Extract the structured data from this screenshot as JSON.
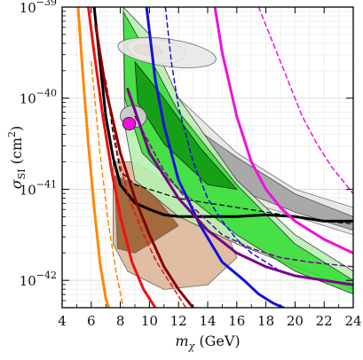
{
  "chart_data": {
    "type": "area",
    "xlabel": "m_χ (GeV)",
    "xlabel_parts": {
      "sym": "m",
      "sub": "χ",
      "unit": " (GeV)"
    },
    "ylabel": "σ_SI (cm²)",
    "ylabel_parts": {
      "sym": "σ",
      "sub": "SI",
      "unit": " (cm",
      "sup": "2",
      "close": ")"
    },
    "xlim": [
      4,
      24
    ],
    "ylim_log10": [
      -42.3,
      -39
    ],
    "y_scale": "log",
    "grid": true,
    "x_ticks": [
      4,
      6,
      8,
      10,
      12,
      14,
      16,
      18,
      20,
      22,
      24
    ],
    "x_tick_labels": [
      "4",
      "6",
      "8",
      "10",
      "12",
      "14",
      "16",
      "18",
      "20",
      "22",
      "24"
    ],
    "y_ticks": [
      {
        "exp": -42,
        "label_base": "10",
        "label_exp": "−42"
      },
      {
        "exp": -41,
        "label_base": "10",
        "label_exp": "−41"
      },
      {
        "exp": -40,
        "label_base": "10",
        "label_exp": "−40"
      },
      {
        "exp": -39,
        "label_base": "10",
        "label_exp": "−39"
      }
    ],
    "regions": [
      {
        "id": "tan-region",
        "fill": "#d9b394",
        "stroke": "#666666",
        "opacity": 0.85,
        "outer": [
          [
            7.5,
            -40.7
          ],
          [
            9,
            -40.7
          ],
          [
            12,
            -41
          ],
          [
            15,
            -41.35
          ],
          [
            16,
            -41.75
          ],
          [
            14,
            -42.05
          ],
          [
            11,
            -42.1
          ],
          [
            8.5,
            -41.9
          ],
          [
            7.5,
            -41.6
          ]
        ],
        "inner": [
          [
            7.6,
            -40.85
          ],
          [
            10,
            -41.0
          ],
          [
            12,
            -41.4
          ],
          [
            9,
            -41.7
          ],
          [
            7.8,
            -41.65
          ]
        ],
        "inner_fill": "#9a5a2a"
      },
      {
        "id": "light-gray-band",
        "fill": "#e6e6e6",
        "stroke": "#777777",
        "opacity": 0.9,
        "outer": [
          [
            9.5,
            -39.4
          ],
          [
            12,
            -40.0
          ],
          [
            16,
            -40.6
          ],
          [
            20,
            -41.0
          ],
          [
            24,
            -41.2
          ],
          [
            24,
            -41.5
          ],
          [
            20,
            -41.3
          ],
          [
            16,
            -41.1
          ],
          [
            12,
            -40.9
          ],
          [
            9.6,
            -40.4
          ]
        ]
      },
      {
        "id": "gray-band",
        "fill": "#999999",
        "stroke": "#555555",
        "opacity": 0.8,
        "outer": [
          [
            9.5,
            -39.8
          ],
          [
            12,
            -40.2
          ],
          [
            16,
            -40.65
          ],
          [
            20,
            -41.05
          ],
          [
            24,
            -41.3
          ],
          [
            24,
            -41.45
          ],
          [
            20,
            -41.25
          ],
          [
            16,
            -41.0
          ],
          [
            12,
            -40.75
          ],
          [
            9.6,
            -40.4
          ]
        ]
      },
      {
        "id": "light-green-band",
        "fill": "#b8f0b0",
        "stroke": "#444444",
        "opacity": 0.9,
        "outer": [
          [
            8.2,
            -39.0
          ],
          [
            10,
            -39.3
          ],
          [
            12,
            -40.0
          ],
          [
            16,
            -40.9
          ],
          [
            20,
            -41.5
          ],
          [
            24,
            -41.9
          ],
          [
            24,
            -42.1
          ],
          [
            20,
            -41.85
          ],
          [
            16,
            -41.6
          ],
          [
            12,
            -41.3
          ],
          [
            9,
            -40.9
          ],
          [
            8.3,
            -40.3
          ]
        ]
      },
      {
        "id": "green-band",
        "fill": "#33dd33",
        "stroke": "#333333",
        "opacity": 0.85,
        "outer": [
          [
            8.2,
            -39.05
          ],
          [
            10,
            -39.55
          ],
          [
            12,
            -40.15
          ],
          [
            16,
            -40.95
          ],
          [
            20,
            -41.6
          ],
          [
            24,
            -42.0
          ],
          [
            24,
            -42.15
          ],
          [
            20,
            -41.9
          ],
          [
            16,
            -41.5
          ],
          [
            12,
            -41.0
          ],
          [
            9.5,
            -40.6
          ],
          [
            8.3,
            -40.0
          ]
        ]
      },
      {
        "id": "dark-green-band",
        "fill": "#119911",
        "stroke": "#222222",
        "opacity": 0.9,
        "outer": [
          [
            9,
            -39.6
          ],
          [
            11,
            -40.0
          ],
          [
            13.5,
            -40.55
          ],
          [
            16,
            -41.0
          ],
          [
            14,
            -40.95
          ],
          [
            11,
            -40.5
          ],
          [
            9.2,
            -40.05
          ]
        ]
      },
      {
        "id": "peach-ellipse",
        "fill": "#ffd9b8",
        "stroke": "#555555",
        "opacity": 0.95,
        "ellipse": {
          "cx": 10.5,
          "cy": -39.48,
          "rx": 2.0,
          "ry": 0.13
        }
      },
      {
        "id": "orange-ellipse",
        "fill": "#ff7a14",
        "stroke": "#333333",
        "opacity": 1.0,
        "ellipse": {
          "cx": 9.9,
          "cy": -39.47,
          "rx": 1.0,
          "ry": 0.06
        }
      },
      {
        "id": "light-gray-ellipse",
        "fill": "#e8e8e8",
        "stroke": "#666666",
        "opacity": 0.9,
        "ellipse": {
          "cx": 11.2,
          "cy": -39.5,
          "rx": 3.4,
          "ry": 0.15
        }
      },
      {
        "id": "gray-ellipse-small",
        "fill": "#cccccc",
        "stroke": "#444444",
        "opacity": 0.95,
        "ellipse": {
          "cx": 8.9,
          "cy": -40.2,
          "rx": 0.9,
          "ry": 0.12
        }
      },
      {
        "id": "magenta-ellipse",
        "fill": "#ee11dd",
        "stroke": "#222222",
        "opacity": 1.0,
        "ellipse": {
          "cx": 8.6,
          "cy": -40.28,
          "rx": 0.45,
          "ry": 0.07
        }
      }
    ],
    "series": [
      {
        "id": "black-solid",
        "color": "#000000",
        "width": 3,
        "dash": "",
        "x": [
          6.2,
          6.6,
          7.0,
          7.5,
          8.0,
          9.0,
          10.0,
          11,
          12,
          14,
          16,
          18,
          20,
          22,
          24
        ],
        "y": [
          -39.0,
          -39.6,
          -40.2,
          -40.65,
          -40.95,
          -41.15,
          -41.22,
          -41.28,
          -41.3,
          -41.3,
          -41.3,
          -41.28,
          -41.3,
          -41.35,
          -41.35
        ]
      },
      {
        "id": "black-dashed",
        "color": "#000000",
        "width": 1.2,
        "dash": "5,4",
        "x": [
          7.0,
          7.5,
          8,
          9,
          10,
          12,
          14,
          16,
          18,
          20,
          22,
          24
        ],
        "y": [
          -39.8,
          -40.4,
          -40.8,
          -40.95,
          -41.0,
          -41.1,
          -41.15,
          -41.2,
          -41.25,
          -41.3,
          -41.35,
          -41.38
        ]
      },
      {
        "id": "orange-solid",
        "color": "#ff8800",
        "width": 3,
        "dash": "",
        "x": [
          5.1,
          5.4,
          5.8,
          6.2,
          6.6,
          7.0,
          7.2
        ],
        "y": [
          -39.0,
          -39.7,
          -40.5,
          -41.2,
          -41.8,
          -42.2,
          -42.3
        ]
      },
      {
        "id": "orange-dashed",
        "color": "#ff8800",
        "width": 1.5,
        "dash": "5,4",
        "x": [
          6.0,
          6.6,
          7.2,
          7.7,
          8.2
        ],
        "y": [
          -39.6,
          -40.6,
          -41.4,
          -41.9,
          -42.3
        ]
      },
      {
        "id": "red-solid",
        "color": "#ee1111",
        "width": 3,
        "dash": "",
        "x": [
          5.8,
          6.2,
          6.8,
          7.4,
          8.0,
          8.8,
          9.6,
          10.4
        ],
        "y": [
          -39.0,
          -39.5,
          -40.2,
          -40.8,
          -41.3,
          -41.8,
          -42.1,
          -42.3
        ]
      },
      {
        "id": "red-dashed",
        "color": "#ee1111",
        "width": 1.5,
        "dash": "5,4",
        "x": [
          7.0,
          7.8,
          8.6,
          9.6,
          10.5,
          11.5,
          12.5
        ],
        "y": [
          -39.8,
          -40.6,
          -41.1,
          -41.5,
          -41.8,
          -42.05,
          -42.3
        ]
      },
      {
        "id": "dark-red-solid",
        "color": "#880000",
        "width": 3,
        "dash": "",
        "x": [
          6.3,
          7,
          8,
          9,
          10,
          11,
          12,
          13
        ],
        "y": [
          -39.2,
          -39.9,
          -40.6,
          -41.1,
          -41.5,
          -41.85,
          -42.1,
          -42.3
        ]
      },
      {
        "id": "blue-solid",
        "color": "#1111dd",
        "width": 3,
        "dash": "",
        "x": [
          9.8,
          10.1,
          10.4,
          11,
          12,
          13.5,
          15,
          16.5,
          17.5,
          18.5,
          19.2
        ],
        "y": [
          -39.0,
          -39.4,
          -39.8,
          -40.3,
          -40.9,
          -41.4,
          -41.8,
          -42.0,
          -42.15,
          -42.25,
          -42.3
        ]
      },
      {
        "id": "blue-dashed",
        "color": "#1111dd",
        "width": 1.5,
        "dash": "5,4",
        "x": [
          11.1,
          11.5,
          12,
          13,
          14,
          15,
          16,
          17,
          18,
          19,
          20,
          22,
          24
        ],
        "y": [
          -39.0,
          -39.6,
          -40.1,
          -40.7,
          -41.1,
          -41.35,
          -41.55,
          -41.7,
          -41.8,
          -41.9,
          -41.95,
          -42.0,
          -42.05
        ]
      },
      {
        "id": "purple-solid",
        "color": "#770088",
        "width": 3,
        "dash": "",
        "x": [
          8.5,
          10,
          12,
          14,
          16,
          18,
          20,
          22,
          24
        ],
        "y": [
          -39.9,
          -40.6,
          -41.1,
          -41.45,
          -41.7,
          -41.85,
          -41.95,
          -42.0,
          -42.05
        ]
      },
      {
        "id": "purple-dashed",
        "color": "#770088",
        "width": 1.5,
        "dash": "5,4",
        "x": [
          9,
          11,
          13,
          15,
          17,
          19,
          21,
          24
        ],
        "y": [
          -40.2,
          -40.8,
          -41.2,
          -41.5,
          -41.65,
          -41.75,
          -41.8,
          -41.85
        ]
      },
      {
        "id": "magenta-solid",
        "color": "#ee11dd",
        "width": 3,
        "dash": "",
        "x": [
          14.5,
          15,
          16,
          17,
          18,
          19,
          20,
          22,
          24
        ],
        "y": [
          -39.0,
          -39.5,
          -40.2,
          -40.7,
          -41.0,
          -41.2,
          -41.35,
          -41.55,
          -41.7
        ]
      },
      {
        "id": "magenta-dashed",
        "color": "#ee11dd",
        "width": 1.5,
        "dash": "5,4",
        "x": [
          17.5,
          18.5,
          19.5,
          20.5,
          21.5,
          22.5,
          23.5,
          24
        ],
        "y": [
          -39.0,
          -39.4,
          -39.8,
          -40.2,
          -40.5,
          -40.75,
          -40.95,
          -41.05
        ]
      }
    ]
  }
}
